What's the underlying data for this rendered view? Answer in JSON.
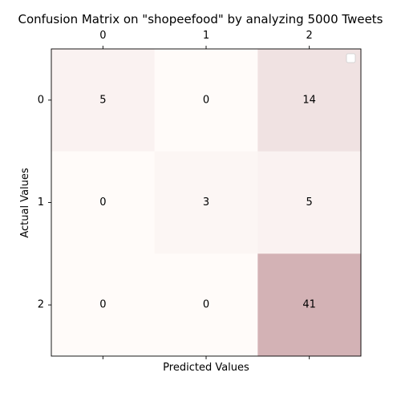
{
  "chart_data": {
    "type": "heatmap",
    "title": "Confusion Matrix on \"shopeefood\" by analyzing 5000 Tweets",
    "xlabel": "Predicted Values",
    "ylabel": "Actual Values",
    "x_categories": [
      "0",
      "1",
      "2"
    ],
    "y_categories": [
      "0",
      "1",
      "2"
    ],
    "values": [
      [
        5,
        0,
        14
      ],
      [
        0,
        3,
        5
      ],
      [
        0,
        0,
        41
      ]
    ],
    "x_ticks_position": "top",
    "legend": "top-right",
    "grid": false,
    "colors": {
      "low": "#fffbf9",
      "high": "#d3b2b5"
    }
  }
}
